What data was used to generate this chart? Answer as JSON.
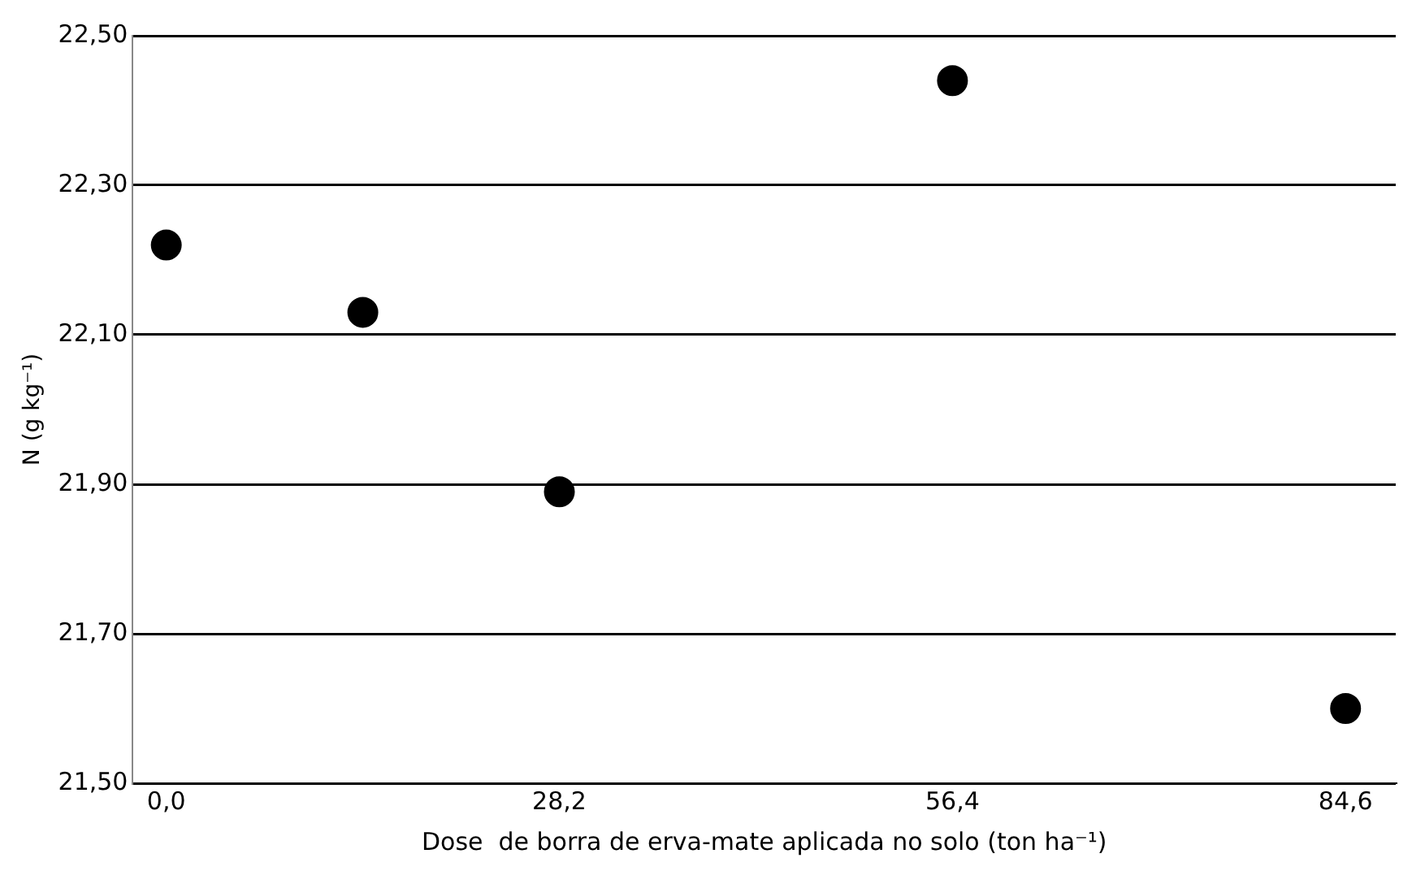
{
  "chart_data": {
    "type": "scatter",
    "xlabel": "Dose  de borra de erva-mate aplicada no solo (ton ha⁻¹)",
    "ylabel": "N (g kg⁻¹)",
    "x": [
      0,
      14.1,
      28.2,
      56.4,
      84.6
    ],
    "series": [
      {
        "color": "#000000",
        "values": [
          22.22,
          22.13,
          21.89,
          22.44,
          21.6
        ]
      }
    ],
    "xlim": [
      -2.4,
      88.2
    ],
    "xticks": [
      {
        "value": 0,
        "label": "0,0"
      },
      {
        "value": 28.2,
        "label": "28,2"
      },
      {
        "value": 56.4,
        "label": "56,4"
      },
      {
        "value": 84.6,
        "label": "84,6"
      }
    ],
    "ylim": [
      21.5,
      22.5
    ],
    "yticks": [
      {
        "value": 21.5,
        "label": "21,50"
      },
      {
        "value": 21.7,
        "label": "21,70"
      },
      {
        "value": 21.9,
        "label": "21,90"
      },
      {
        "value": 22.1,
        "label": "22,10"
      },
      {
        "value": 22.3,
        "label": "22,30"
      },
      {
        "value": 22.5,
        "label": "22,50"
      }
    ],
    "grid": "y",
    "legend": false,
    "marker": "circle"
  }
}
